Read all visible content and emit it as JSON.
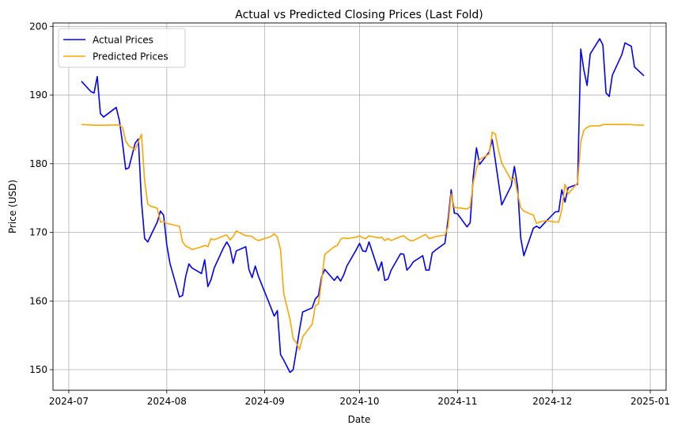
{
  "chart_data": {
    "type": "line",
    "title": "Actual vs Predicted Closing Prices (Last Fold)",
    "xlabel": "Date",
    "ylabel": "Price (USD)",
    "xlim": [
      "2024-06-26",
      "2025-01-06"
    ],
    "ylim": [
      147,
      200.5
    ],
    "x_ticks": [
      "2024-07-01",
      "2024-08-01",
      "2024-09-01",
      "2024-10-01",
      "2024-11-01",
      "2024-12-01",
      "2025-01-01"
    ],
    "x_tick_labels": [
      "2024-07",
      "2024-08",
      "2024-09",
      "2024-10",
      "2024-11",
      "2024-12",
      "2025-01"
    ],
    "y_ticks": [
      150,
      160,
      170,
      180,
      190,
      200
    ],
    "y_tick_labels": [
      "150",
      "160",
      "170",
      "180",
      "190",
      "200"
    ],
    "grid": true,
    "legend_position": "top-left",
    "x": [
      "2024-07-05",
      "2024-07-08",
      "2024-07-09",
      "2024-07-10",
      "2024-07-11",
      "2024-07-12",
      "2024-07-16",
      "2024-07-17",
      "2024-07-18",
      "2024-07-19",
      "2024-07-20",
      "2024-07-22",
      "2024-07-23",
      "2024-07-24",
      "2024-07-25",
      "2024-07-26",
      "2024-07-27",
      "2024-07-29",
      "2024-07-30",
      "2024-07-31",
      "2024-08-01",
      "2024-08-02",
      "2024-08-05",
      "2024-08-06",
      "2024-08-07",
      "2024-08-08",
      "2024-08-09",
      "2024-08-12",
      "2024-08-13",
      "2024-08-14",
      "2024-08-15",
      "2024-08-16",
      "2024-08-19",
      "2024-08-20",
      "2024-08-21",
      "2024-08-22",
      "2024-08-23",
      "2024-08-26",
      "2024-08-27",
      "2024-08-28",
      "2024-08-29",
      "2024-08-30",
      "2024-09-03",
      "2024-09-04",
      "2024-09-05",
      "2024-09-06",
      "2024-09-07",
      "2024-09-09",
      "2024-09-10",
      "2024-09-11",
      "2024-09-12",
      "2024-09-13",
      "2024-09-16",
      "2024-09-17",
      "2024-09-18",
      "2024-09-19",
      "2024-09-20",
      "2024-09-23",
      "2024-09-24",
      "2024-09-25",
      "2024-09-26",
      "2024-09-27",
      "2024-09-30",
      "2024-10-01",
      "2024-10-02",
      "2024-10-03",
      "2024-10-04",
      "2024-10-07",
      "2024-10-08",
      "2024-10-09",
      "2024-10-10",
      "2024-10-11",
      "2024-10-14",
      "2024-10-15",
      "2024-10-16",
      "2024-10-17",
      "2024-10-18",
      "2024-10-21",
      "2024-10-22",
      "2024-10-23",
      "2024-10-24",
      "2024-10-25",
      "2024-10-28",
      "2024-10-29",
      "2024-10-30",
      "2024-10-31",
      "2024-11-01",
      "2024-11-04",
      "2024-11-05",
      "2024-11-06",
      "2024-11-07",
      "2024-11-08",
      "2024-11-11",
      "2024-11-12",
      "2024-11-13",
      "2024-11-14",
      "2024-11-15",
      "2024-11-18",
      "2024-11-19",
      "2024-11-20",
      "2024-11-21",
      "2024-11-22",
      "2024-11-25",
      "2024-11-26",
      "2024-11-27",
      "2024-11-29",
      "2024-12-02",
      "2024-12-03",
      "2024-12-04",
      "2024-12-05",
      "2024-12-06",
      "2024-12-09",
      "2024-12-10",
      "2024-12-11",
      "2024-12-12",
      "2024-12-13",
      "2024-12-16",
      "2024-12-17",
      "2024-12-18",
      "2024-12-19",
      "2024-12-20",
      "2024-12-23",
      "2024-12-24",
      "2024-12-26",
      "2024-12-27",
      "2024-12-30"
    ],
    "series": [
      {
        "name": "Actual Prices",
        "color": "#0000ff",
        "values": [
          192.0,
          190.5,
          190.3,
          192.7,
          187.3,
          186.8,
          188.2,
          186.3,
          183.0,
          179.2,
          179.4,
          183.0,
          183.6,
          174.5,
          169.1,
          168.6,
          169.6,
          171.5,
          173.1,
          172.5,
          168.2,
          165.5,
          160.6,
          160.8,
          163.6,
          165.4,
          164.8,
          164.0,
          166.0,
          162.1,
          163.1,
          164.8,
          167.8,
          168.6,
          167.8,
          165.5,
          167.3,
          167.9,
          164.6,
          163.4,
          165.1,
          163.6,
          159.0,
          157.8,
          158.6,
          152.2,
          151.4,
          149.6,
          150.0,
          152.8,
          155.8,
          158.4,
          159.0,
          160.3,
          160.8,
          163.5,
          164.6,
          163.0,
          163.6,
          162.9,
          163.8,
          165.1,
          167.5,
          168.4,
          167.3,
          167.2,
          168.6,
          164.4,
          165.7,
          163.0,
          163.2,
          164.5,
          166.9,
          166.8,
          164.5,
          165.0,
          165.7,
          166.6,
          164.5,
          164.5,
          167.0,
          167.4,
          168.4,
          171.8,
          176.2,
          172.8,
          172.7,
          170.8,
          171.4,
          178.2,
          182.3,
          179.9,
          181.7,
          183.5,
          180.4,
          177.2,
          174.0,
          176.8,
          179.6,
          176.7,
          169.2,
          166.6,
          170.6,
          170.9,
          170.6,
          171.6,
          173.0,
          173.0,
          176.2,
          174.4,
          176.5,
          177.0,
          196.7,
          193.6,
          191.4,
          196.0,
          198.2,
          197.3,
          190.3,
          189.8,
          192.9,
          195.9,
          197.6,
          197.1,
          194.1,
          192.8
        ]
      },
      {
        "name": "Predicted Prices",
        "color": "#ffa500",
        "values": [
          185.7,
          185.65,
          185.6,
          185.6,
          185.6,
          185.6,
          185.65,
          185.6,
          185.3,
          183.3,
          182.6,
          182.0,
          183.2,
          184.3,
          177.5,
          174.1,
          173.8,
          173.5,
          171.5,
          171.6,
          171.3,
          171.2,
          170.9,
          168.6,
          168.0,
          167.8,
          167.5,
          167.9,
          168.1,
          167.9,
          169.1,
          168.9,
          169.5,
          169.6,
          168.9,
          169.4,
          170.2,
          169.5,
          169.5,
          169.4,
          169.0,
          168.8,
          169.4,
          169.8,
          169.3,
          167.5,
          161.1,
          157.3,
          154.5,
          153.9,
          152.9,
          154.8,
          156.6,
          159.3,
          159.6,
          163.0,
          166.8,
          167.9,
          168.1,
          169.0,
          169.2,
          169.1,
          169.3,
          169.5,
          169.2,
          169.1,
          169.5,
          169.2,
          169.3,
          168.8,
          169.1,
          168.8,
          169.4,
          169.5,
          169.1,
          168.8,
          168.8,
          169.5,
          169.7,
          169.1,
          169.2,
          169.4,
          169.6,
          170.8,
          175.6,
          173.6,
          173.6,
          173.4,
          173.7,
          177.3,
          179.3,
          180.6,
          181.4,
          184.6,
          184.3,
          181.9,
          180.1,
          177.6,
          177.9,
          175.7,
          173.6,
          173.1,
          172.5,
          171.3,
          171.5,
          171.7,
          171.5,
          171.5,
          173.3,
          177.0,
          175.6,
          177.2,
          183.2,
          184.9,
          185.3,
          185.5,
          185.5,
          185.7,
          185.7,
          185.7,
          185.7,
          185.7,
          185.7,
          185.7,
          185.65,
          185.6
        ]
      }
    ]
  }
}
